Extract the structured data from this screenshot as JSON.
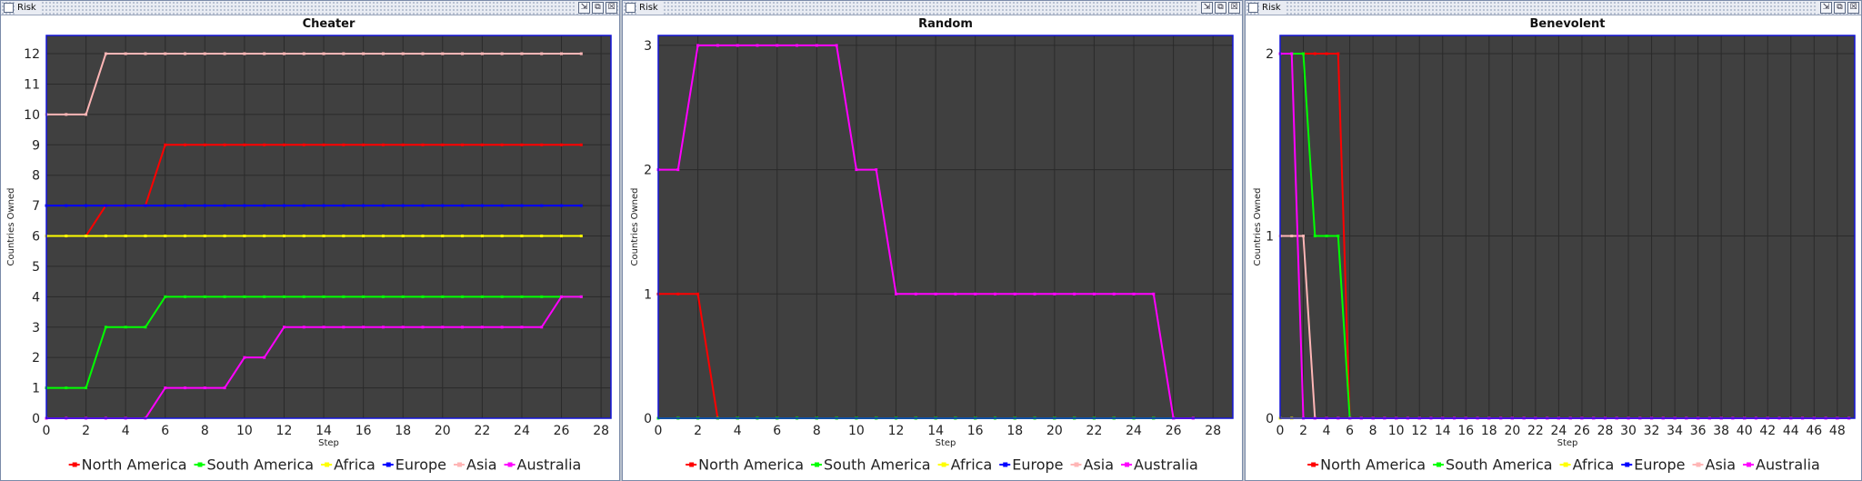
{
  "windows": [
    {
      "title": "Risk",
      "buttons": [
        "⇲",
        "⧉",
        "☒"
      ]
    },
    {
      "title": "Risk",
      "buttons": [
        "⇲",
        "⧉",
        "☒"
      ]
    },
    {
      "title": "Risk",
      "buttons": [
        "⇲",
        "⧉",
        "☒"
      ]
    }
  ],
  "colors": {
    "plot_background": "#404040",
    "grid": "#2a2a2a",
    "plot_border": "#1414d8",
    "series": {
      "North America": "#ff0000",
      "South  America": "#00ff00",
      "Africa": "#ffff00",
      "Europe": "#0000ff",
      "Asia": "#ffb6b6",
      "Australia": "#ff00ff"
    }
  },
  "chart_data": [
    {
      "type": "line",
      "title": "Cheater",
      "xlabel": "Step",
      "ylabel": "Countries Owned",
      "xlim": [
        0,
        28.5
      ],
      "ylim": [
        0,
        12.6
      ],
      "xticks": [
        0,
        2,
        4,
        6,
        8,
        10,
        12,
        14,
        16,
        18,
        20,
        22,
        24,
        26,
        28
      ],
      "yticks": [
        0,
        1,
        2,
        3,
        4,
        5,
        6,
        7,
        8,
        9,
        10,
        11,
        12
      ],
      "grid": true,
      "legend": "bottom",
      "x": [
        0,
        1,
        2,
        3,
        4,
        5,
        6,
        7,
        8,
        9,
        10,
        11,
        12,
        13,
        14,
        15,
        16,
        17,
        18,
        19,
        20,
        21,
        22,
        23,
        24,
        25,
        26,
        27
      ],
      "series": [
        {
          "name": "North America",
          "values": [
            6,
            6,
            6,
            7,
            7,
            7,
            9,
            9,
            9,
            9,
            9,
            9,
            9,
            9,
            9,
            9,
            9,
            9,
            9,
            9,
            9,
            9,
            9,
            9,
            9,
            9,
            9,
            9
          ]
        },
        {
          "name": "South  America",
          "values": [
            1,
            1,
            1,
            3,
            3,
            3,
            4,
            4,
            4,
            4,
            4,
            4,
            4,
            4,
            4,
            4,
            4,
            4,
            4,
            4,
            4,
            4,
            4,
            4,
            4,
            4,
            4,
            4
          ]
        },
        {
          "name": "Africa",
          "values": [
            6,
            6,
            6,
            6,
            6,
            6,
            6,
            6,
            6,
            6,
            6,
            6,
            6,
            6,
            6,
            6,
            6,
            6,
            6,
            6,
            6,
            6,
            6,
            6,
            6,
            6,
            6,
            6
          ]
        },
        {
          "name": "Europe",
          "values": [
            7,
            7,
            7,
            7,
            7,
            7,
            7,
            7,
            7,
            7,
            7,
            7,
            7,
            7,
            7,
            7,
            7,
            7,
            7,
            7,
            7,
            7,
            7,
            7,
            7,
            7,
            7,
            7
          ]
        },
        {
          "name": "Asia",
          "values": [
            10,
            10,
            10,
            12,
            12,
            12,
            12,
            12,
            12,
            12,
            12,
            12,
            12,
            12,
            12,
            12,
            12,
            12,
            12,
            12,
            12,
            12,
            12,
            12,
            12,
            12,
            12,
            12
          ]
        },
        {
          "name": "Australia",
          "values": [
            0,
            0,
            0,
            0,
            0,
            0,
            1,
            1,
            1,
            1,
            2,
            2,
            3,
            3,
            3,
            3,
            3,
            3,
            3,
            3,
            3,
            3,
            3,
            3,
            3,
            3,
            4,
            4
          ]
        }
      ]
    },
    {
      "type": "line",
      "title": "Random",
      "xlabel": "Step",
      "ylabel": "Countries Owned",
      "xlim": [
        0,
        29
      ],
      "ylim": [
        0,
        3.08
      ],
      "xticks": [
        0,
        2,
        4,
        6,
        8,
        10,
        12,
        14,
        16,
        18,
        20,
        22,
        24,
        26,
        28
      ],
      "yticks": [
        0,
        1,
        2,
        3
      ],
      "grid": true,
      "legend": "bottom",
      "x": [
        0,
        1,
        2,
        3,
        4,
        5,
        6,
        7,
        8,
        9,
        10,
        11,
        12,
        13,
        14,
        15,
        16,
        17,
        18,
        19,
        20,
        21,
        22,
        23,
        24,
        25,
        26,
        27
      ],
      "series": [
        {
          "name": "North America",
          "values": [
            1,
            1,
            1,
            0,
            0,
            0,
            0,
            0,
            0,
            0,
            0,
            0,
            0,
            0,
            0,
            0,
            0,
            0,
            0,
            0,
            0,
            0,
            0,
            0,
            0,
            0,
            0,
            0
          ]
        },
        {
          "name": "South  America",
          "values": [
            0,
            0,
            0,
            0,
            0,
            0,
            0,
            0,
            0,
            0,
            0,
            0,
            0,
            0,
            0,
            0,
            0,
            0,
            0,
            0,
            0,
            0,
            0,
            0,
            0,
            0,
            0,
            0
          ]
        },
        {
          "name": "Africa",
          "values": [
            0,
            0,
            0,
            0,
            0,
            0,
            0,
            0,
            0,
            0,
            0,
            0,
            0,
            0,
            0,
            0,
            0,
            0,
            0,
            0,
            0,
            0,
            0,
            0,
            0,
            0,
            0,
            0
          ]
        },
        {
          "name": "Europe",
          "values": [
            0,
            0,
            0,
            0,
            0,
            0,
            0,
            0,
            0,
            0,
            0,
            0,
            0,
            0,
            0,
            0,
            0,
            0,
            0,
            0,
            0,
            0,
            0,
            0,
            0,
            0,
            0,
            0
          ]
        },
        {
          "name": "Asia",
          "values": [
            0,
            0,
            0,
            0,
            0,
            0,
            0,
            0,
            0,
            0,
            0,
            0,
            0,
            0,
            0,
            0,
            0,
            0,
            0,
            0,
            0,
            0,
            0,
            0,
            0,
            0,
            0,
            0
          ]
        },
        {
          "name": "Australia",
          "values": [
            2,
            2,
            3,
            3,
            3,
            3,
            3,
            3,
            3,
            3,
            2,
            2,
            1,
            1,
            1,
            1,
            1,
            1,
            1,
            1,
            1,
            1,
            1,
            1,
            1,
            1,
            0,
            0
          ]
        }
      ]
    },
    {
      "type": "line",
      "title": "Benevolent",
      "xlabel": "Step",
      "ylabel": "Countries Owned",
      "xlim": [
        0,
        49.5
      ],
      "ylim": [
        0,
        2.1
      ],
      "xticks": [
        0,
        2,
        4,
        6,
        8,
        10,
        12,
        14,
        16,
        18,
        20,
        22,
        24,
        26,
        28,
        30,
        32,
        34,
        36,
        38,
        40,
        42,
        44,
        46,
        48
      ],
      "yticks": [
        0,
        1,
        2
      ],
      "grid": true,
      "legend": "bottom",
      "x": [
        0,
        1,
        2,
        3,
        4,
        5,
        6,
        7,
        8,
        9,
        10,
        11,
        12,
        13,
        14,
        15,
        16,
        17,
        18,
        19,
        20,
        21,
        22,
        23,
        24,
        25,
        26,
        27,
        28,
        29,
        30,
        31,
        32,
        33,
        34,
        35,
        36,
        37,
        38,
        39,
        40,
        41,
        42,
        43,
        44,
        45,
        46,
        47,
        48,
        49
      ],
      "series": [
        {
          "name": "North America",
          "values": [
            2,
            2,
            2,
            2,
            2,
            2,
            0,
            0,
            0,
            0,
            0,
            0,
            0,
            0,
            0,
            0,
            0,
            0,
            0,
            0,
            0,
            0,
            0,
            0,
            0,
            0,
            0,
            0,
            0,
            0,
            0,
            0,
            0,
            0,
            0,
            0,
            0,
            0,
            0,
            0,
            0,
            0,
            0,
            0,
            0,
            0,
            0,
            0,
            0,
            0
          ]
        },
        {
          "name": "South  America",
          "values": [
            2,
            2,
            2,
            1,
            1,
            1,
            0,
            0,
            0,
            0,
            0,
            0,
            0,
            0,
            0,
            0,
            0,
            0,
            0,
            0,
            0,
            0,
            0,
            0,
            0,
            0,
            0,
            0,
            0,
            0,
            0,
            0,
            0,
            0,
            0,
            0,
            0,
            0,
            0,
            0,
            0,
            0,
            0,
            0,
            0,
            0,
            0,
            0,
            0,
            0
          ]
        },
        {
          "name": "Africa",
          "values": [
            0,
            0,
            0,
            0,
            0,
            0,
            0,
            0,
            0,
            0,
            0,
            0,
            0,
            0,
            0,
            0,
            0,
            0,
            0,
            0,
            0,
            0,
            0,
            0,
            0,
            0,
            0,
            0,
            0,
            0,
            0,
            0,
            0,
            0,
            0,
            0,
            0,
            0,
            0,
            0,
            0,
            0,
            0,
            0,
            0,
            0,
            0,
            0,
            0,
            0
          ]
        },
        {
          "name": "Europe",
          "values": [
            0,
            0,
            0,
            0,
            0,
            0,
            0,
            0,
            0,
            0,
            0,
            0,
            0,
            0,
            0,
            0,
            0,
            0,
            0,
            0,
            0,
            0,
            0,
            0,
            0,
            0,
            0,
            0,
            0,
            0,
            0,
            0,
            0,
            0,
            0,
            0,
            0,
            0,
            0,
            0,
            0,
            0,
            0,
            0,
            0,
            0,
            0,
            0,
            0,
            0
          ]
        },
        {
          "name": "Asia",
          "values": [
            1,
            1,
            1,
            0,
            0,
            0,
            0,
            0,
            0,
            0,
            0,
            0,
            0,
            0,
            0,
            0,
            0,
            0,
            0,
            0,
            0,
            0,
            0,
            0,
            0,
            0,
            0,
            0,
            0,
            0,
            0,
            0,
            0,
            0,
            0,
            0,
            0,
            0,
            0,
            0,
            0,
            0,
            0,
            0,
            0,
            0,
            0,
            0,
            0,
            0
          ]
        },
        {
          "name": "Australia",
          "values": [
            2,
            2,
            0,
            0,
            0,
            0,
            0,
            0,
            0,
            0,
            0,
            0,
            0,
            0,
            0,
            0,
            0,
            0,
            0,
            0,
            0,
            0,
            0,
            0,
            0,
            0,
            0,
            0,
            0,
            0,
            0,
            0,
            0,
            0,
            0,
            0,
            0,
            0,
            0,
            0,
            0,
            0,
            0,
            0,
            0,
            0,
            0,
            0,
            0,
            0
          ]
        }
      ]
    }
  ]
}
